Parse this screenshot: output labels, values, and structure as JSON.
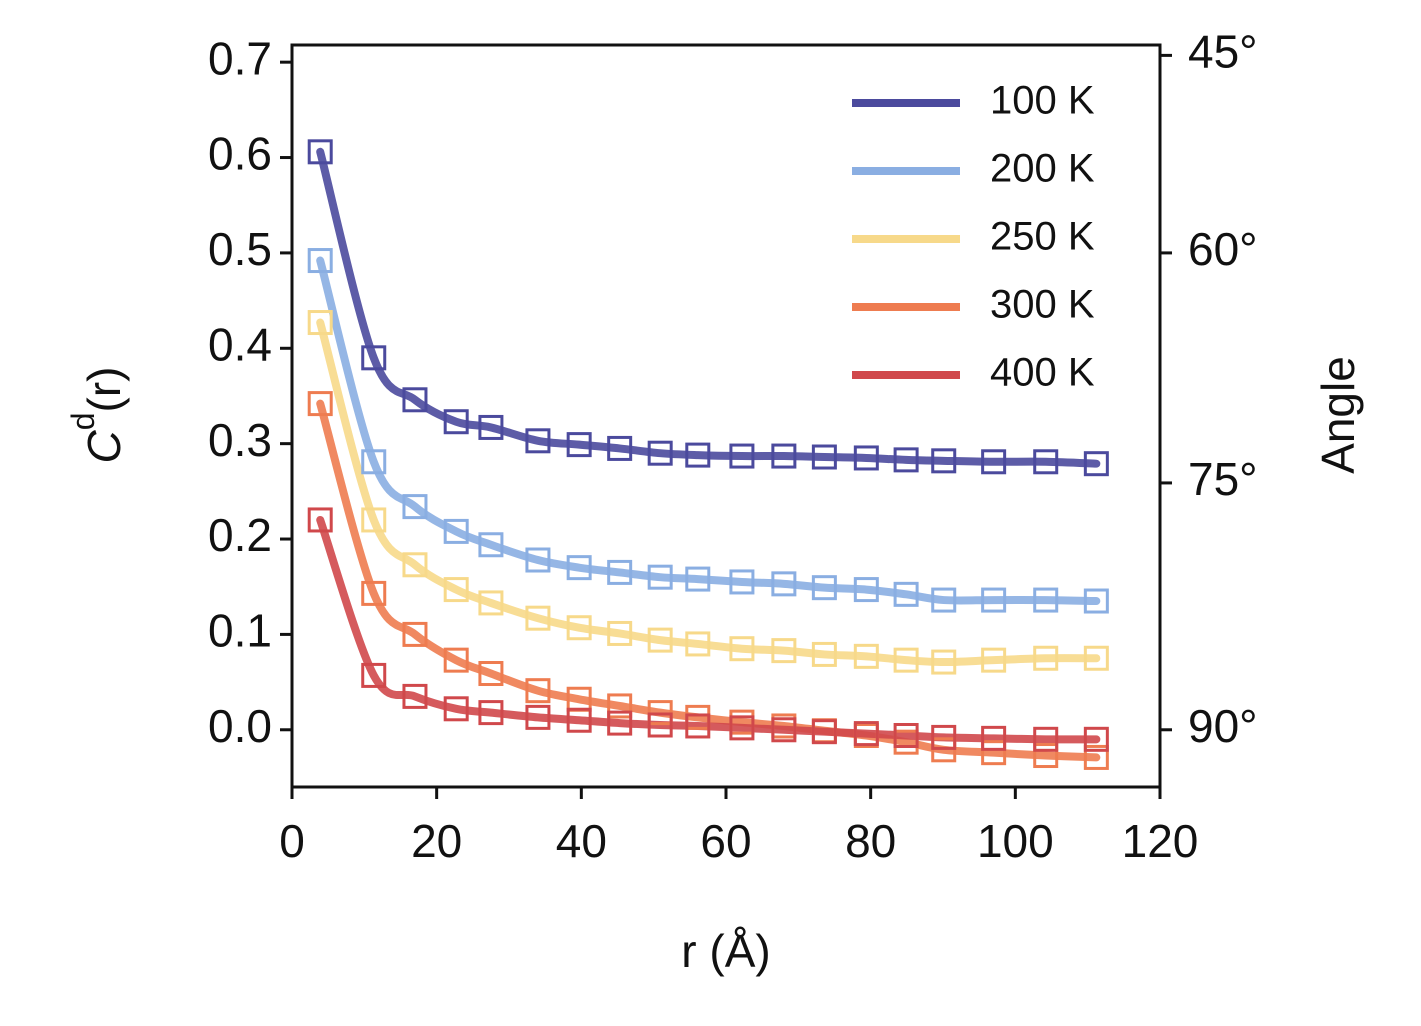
{
  "chart_data": {
    "type": "line",
    "xlabel": "r (Å)",
    "ylabel": {
      "base": "C",
      "sup": "d",
      "arg": "(r)"
    },
    "y2label": "Angle",
    "x": [
      3.9,
      11.3,
      17,
      22.7,
      27.5,
      34,
      39.7,
      45.3,
      50.9,
      56.1,
      62.2,
      68,
      73.6,
      79.4,
      84.9,
      90.1,
      97,
      104.2,
      111.2
    ],
    "series": [
      {
        "name": "100 K",
        "color": "#4b4a9d",
        "values": [
          0.606,
          0.39,
          0.346,
          0.323,
          0.317,
          0.303,
          0.299,
          0.295,
          0.29,
          0.288,
          0.287,
          0.287,
          0.286,
          0.285,
          0.283,
          0.282,
          0.281,
          0.281,
          0.279
        ]
      },
      {
        "name": "200 K",
        "color": "#8aaee2",
        "values": [
          0.492,
          0.281,
          0.234,
          0.208,
          0.194,
          0.178,
          0.17,
          0.165,
          0.16,
          0.158,
          0.155,
          0.153,
          0.149,
          0.147,
          0.142,
          0.136,
          0.136,
          0.136,
          0.135
        ]
      },
      {
        "name": "250 K",
        "color": "#f7d98a",
        "values": [
          0.427,
          0.22,
          0.173,
          0.147,
          0.133,
          0.117,
          0.107,
          0.101,
          0.094,
          0.09,
          0.085,
          0.083,
          0.079,
          0.077,
          0.073,
          0.071,
          0.073,
          0.075,
          0.075
        ]
      },
      {
        "name": "300 K",
        "color": "#ee7c50",
        "values": [
          0.342,
          0.143,
          0.1,
          0.073,
          0.059,
          0.041,
          0.032,
          0.025,
          0.018,
          0.013,
          0.008,
          0.004,
          -0.001,
          -0.006,
          -0.013,
          -0.021,
          -0.024,
          -0.027,
          -0.029
        ]
      },
      {
        "name": "400 K",
        "color": "#d0484b",
        "values": [
          0.22,
          0.057,
          0.035,
          0.022,
          0.018,
          0.013,
          0.01,
          0.007,
          0.005,
          0.004,
          0.002,
          0,
          -0.002,
          -0.004,
          -0.006,
          -0.008,
          -0.009,
          -0.01,
          -0.01
        ]
      }
    ],
    "xlim": [
      0,
      120
    ],
    "xticks": [
      0,
      20,
      40,
      60,
      80,
      100,
      120
    ],
    "ylim": [
      -0.06,
      0.718
    ],
    "yticks": [
      {
        "value": 0,
        "label": "0.0"
      },
      0.1,
      0.2,
      0.3,
      0.4,
      0.5,
      0.6,
      0.7
    ],
    "y2lim": [
      44.1,
      93.4
    ],
    "y2scale": "cos",
    "y2ticks": [
      {
        "value": 45,
        "label": "45°"
      },
      {
        "value": 60,
        "label": "60°"
      },
      {
        "value": 75,
        "label": "75°"
      },
      {
        "value": 90,
        "label": "90°"
      }
    ],
    "legend": "upper right",
    "grid": false
  }
}
